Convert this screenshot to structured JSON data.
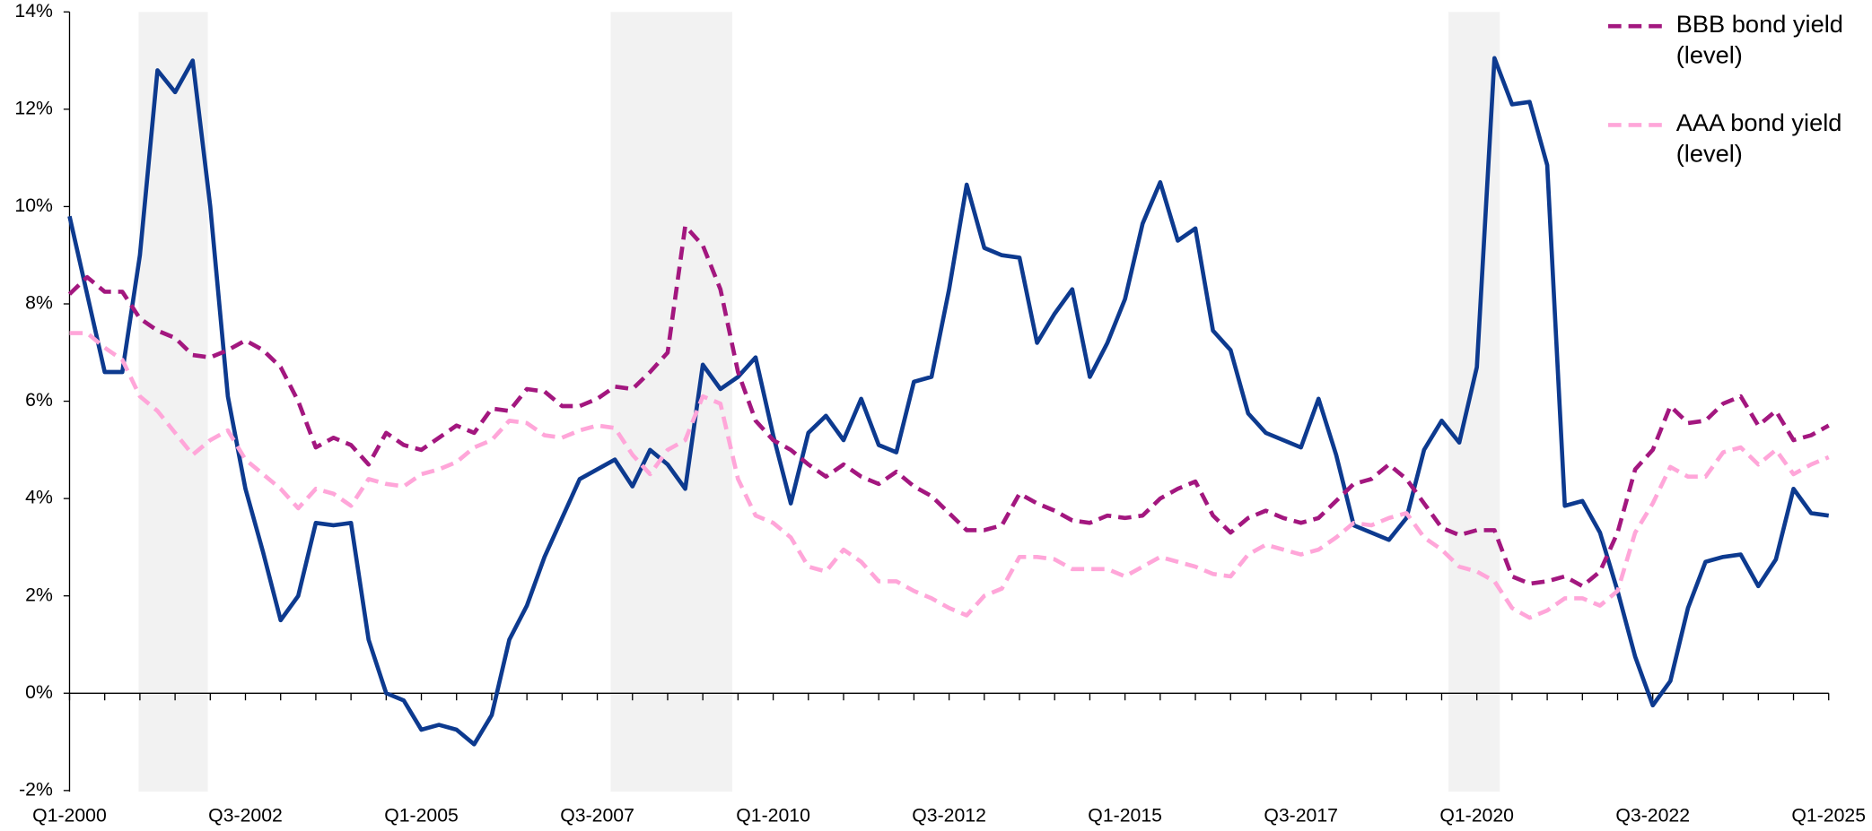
{
  "chart_data": {
    "type": "line",
    "categories": [
      "Q1-2000",
      null,
      null,
      null,
      null,
      null,
      null,
      null,
      null,
      null,
      "Q3-2002",
      null,
      null,
      null,
      null,
      null,
      null,
      null,
      null,
      null,
      "Q1-2005",
      null,
      null,
      null,
      null,
      null,
      null,
      null,
      null,
      null,
      "Q3-2007",
      null,
      null,
      null,
      null,
      null,
      null,
      null,
      null,
      null,
      "Q1-2010",
      null,
      null,
      null,
      null,
      null,
      null,
      null,
      null,
      null,
      "Q3-2012",
      null,
      null,
      null,
      null,
      null,
      null,
      null,
      null,
      null,
      "Q1-2015",
      null,
      null,
      null,
      null,
      null,
      null,
      null,
      null,
      null,
      "Q3-2017",
      null,
      null,
      null,
      null,
      null,
      null,
      null,
      null,
      null,
      "Q1-2020",
      null,
      null,
      null,
      null,
      null,
      null,
      null,
      null,
      null,
      "Q3-2022",
      null,
      null,
      null,
      null,
      null,
      null,
      null,
      null,
      null,
      "Q1-2025"
    ],
    "series": [
      {
        "color": "#0d3a8f",
        "dashed": false,
        "values": [
          9.8,
          8.2,
          6.6,
          6.6,
          9.0,
          12.8,
          12.35,
          13.0,
          10.0,
          6.1,
          4.2,
          2.9,
          1.5,
          2.0,
          3.5,
          3.45,
          3.5,
          1.1,
          0.0,
          -0.15,
          -0.75,
          -0.65,
          -0.75,
          -1.05,
          -0.45,
          1.1,
          1.8,
          2.8,
          3.6,
          4.4,
          4.6,
          4.8,
          4.25,
          5.0,
          4.7,
          4.2,
          6.75,
          6.25,
          6.5,
          6.9,
          5.3,
          3.9,
          5.35,
          5.7,
          5.2,
          6.05,
          5.1,
          4.95,
          6.4,
          6.5,
          8.3,
          10.45,
          9.15,
          9.0,
          8.95,
          7.2,
          7.8,
          8.3,
          6.5,
          7.2,
          8.1,
          9.65,
          10.5,
          9.3,
          9.55,
          7.45,
          7.05,
          5.75,
          5.35,
          5.2,
          5.05,
          6.05,
          4.9,
          3.45,
          3.3,
          3.15,
          3.6,
          5.0,
          5.6,
          5.15,
          6.7,
          13.05,
          12.1,
          12.15,
          10.85,
          3.85,
          3.95,
          3.3,
          2.1,
          0.75,
          -0.25,
          0.25,
          1.75,
          2.7,
          2.8,
          2.85,
          2.2,
          2.75,
          4.2,
          3.7,
          3.65
        ]
      },
      {
        "name": "BBB bond yield (level)",
        "color": "#a3177f",
        "dashed": true,
        "values": [
          8.2,
          8.55,
          8.25,
          8.25,
          7.7,
          7.45,
          7.3,
          6.95,
          6.9,
          7.05,
          7.25,
          7.05,
          6.7,
          6.0,
          5.05,
          5.25,
          5.1,
          4.7,
          5.35,
          5.1,
          5.0,
          5.25,
          5.5,
          5.35,
          5.85,
          5.8,
          6.25,
          6.2,
          5.9,
          5.9,
          6.05,
          6.3,
          6.25,
          6.6,
          7.0,
          9.6,
          9.2,
          8.3,
          6.6,
          5.6,
          5.2,
          5.0,
          4.7,
          4.45,
          4.7,
          4.45,
          4.3,
          4.55,
          4.25,
          4.05,
          3.7,
          3.35,
          3.35,
          3.45,
          4.1,
          3.9,
          3.75,
          3.55,
          3.5,
          3.65,
          3.6,
          3.65,
          4.0,
          4.2,
          4.35,
          3.65,
          3.3,
          3.6,
          3.75,
          3.6,
          3.5,
          3.6,
          3.95,
          4.3,
          4.4,
          4.7,
          4.4,
          3.9,
          3.4,
          3.25,
          3.35,
          3.35,
          2.4,
          2.25,
          2.3,
          2.4,
          2.2,
          2.5,
          3.3,
          4.6,
          5.0,
          5.9,
          5.55,
          5.6,
          5.95,
          6.1,
          5.5,
          5.8,
          5.2,
          5.3,
          5.5
        ]
      },
      {
        "name": "AAA bond yield (level)",
        "color": "#ffa6d9",
        "dashed": true,
        "values": [
          7.4,
          7.4,
          7.1,
          6.85,
          6.1,
          5.8,
          5.35,
          4.9,
          5.2,
          5.4,
          4.8,
          4.5,
          4.2,
          3.8,
          4.2,
          4.1,
          3.85,
          4.4,
          4.3,
          4.25,
          4.5,
          4.6,
          4.75,
          5.05,
          5.2,
          5.6,
          5.55,
          5.3,
          5.25,
          5.4,
          5.5,
          5.45,
          4.9,
          4.5,
          5.0,
          5.2,
          6.1,
          5.95,
          4.4,
          3.65,
          3.5,
          3.2,
          2.6,
          2.5,
          2.95,
          2.7,
          2.3,
          2.3,
          2.1,
          1.95,
          1.75,
          1.6,
          2.0,
          2.15,
          2.8,
          2.8,
          2.75,
          2.55,
          2.55,
          2.55,
          2.4,
          2.6,
          2.8,
          2.7,
          2.6,
          2.45,
          2.4,
          2.85,
          3.05,
          2.95,
          2.85,
          2.95,
          3.2,
          3.5,
          3.45,
          3.6,
          3.7,
          3.2,
          2.95,
          2.6,
          2.5,
          2.3,
          1.75,
          1.55,
          1.7,
          1.95,
          1.95,
          1.8,
          2.1,
          3.3,
          3.9,
          4.65,
          4.45,
          4.45,
          4.95,
          5.05,
          4.7,
          5.0,
          4.5,
          4.7,
          4.85
        ]
      }
    ],
    "ylim": [
      -2,
      14
    ],
    "yticks": [
      {
        "value": -2,
        "label": "-2%"
      },
      {
        "value": 0,
        "label": "0%"
      },
      {
        "value": 2,
        "label": "2%"
      },
      {
        "value": 4,
        "label": "4%"
      },
      {
        "value": 6,
        "label": "6%"
      },
      {
        "value": 8,
        "label": "8%"
      },
      {
        "value": 10,
        "label": "10%"
      },
      {
        "value": 12,
        "label": "12%"
      },
      {
        "value": 14,
        "label": "14%"
      }
    ],
    "legend": "top-right"
  }
}
